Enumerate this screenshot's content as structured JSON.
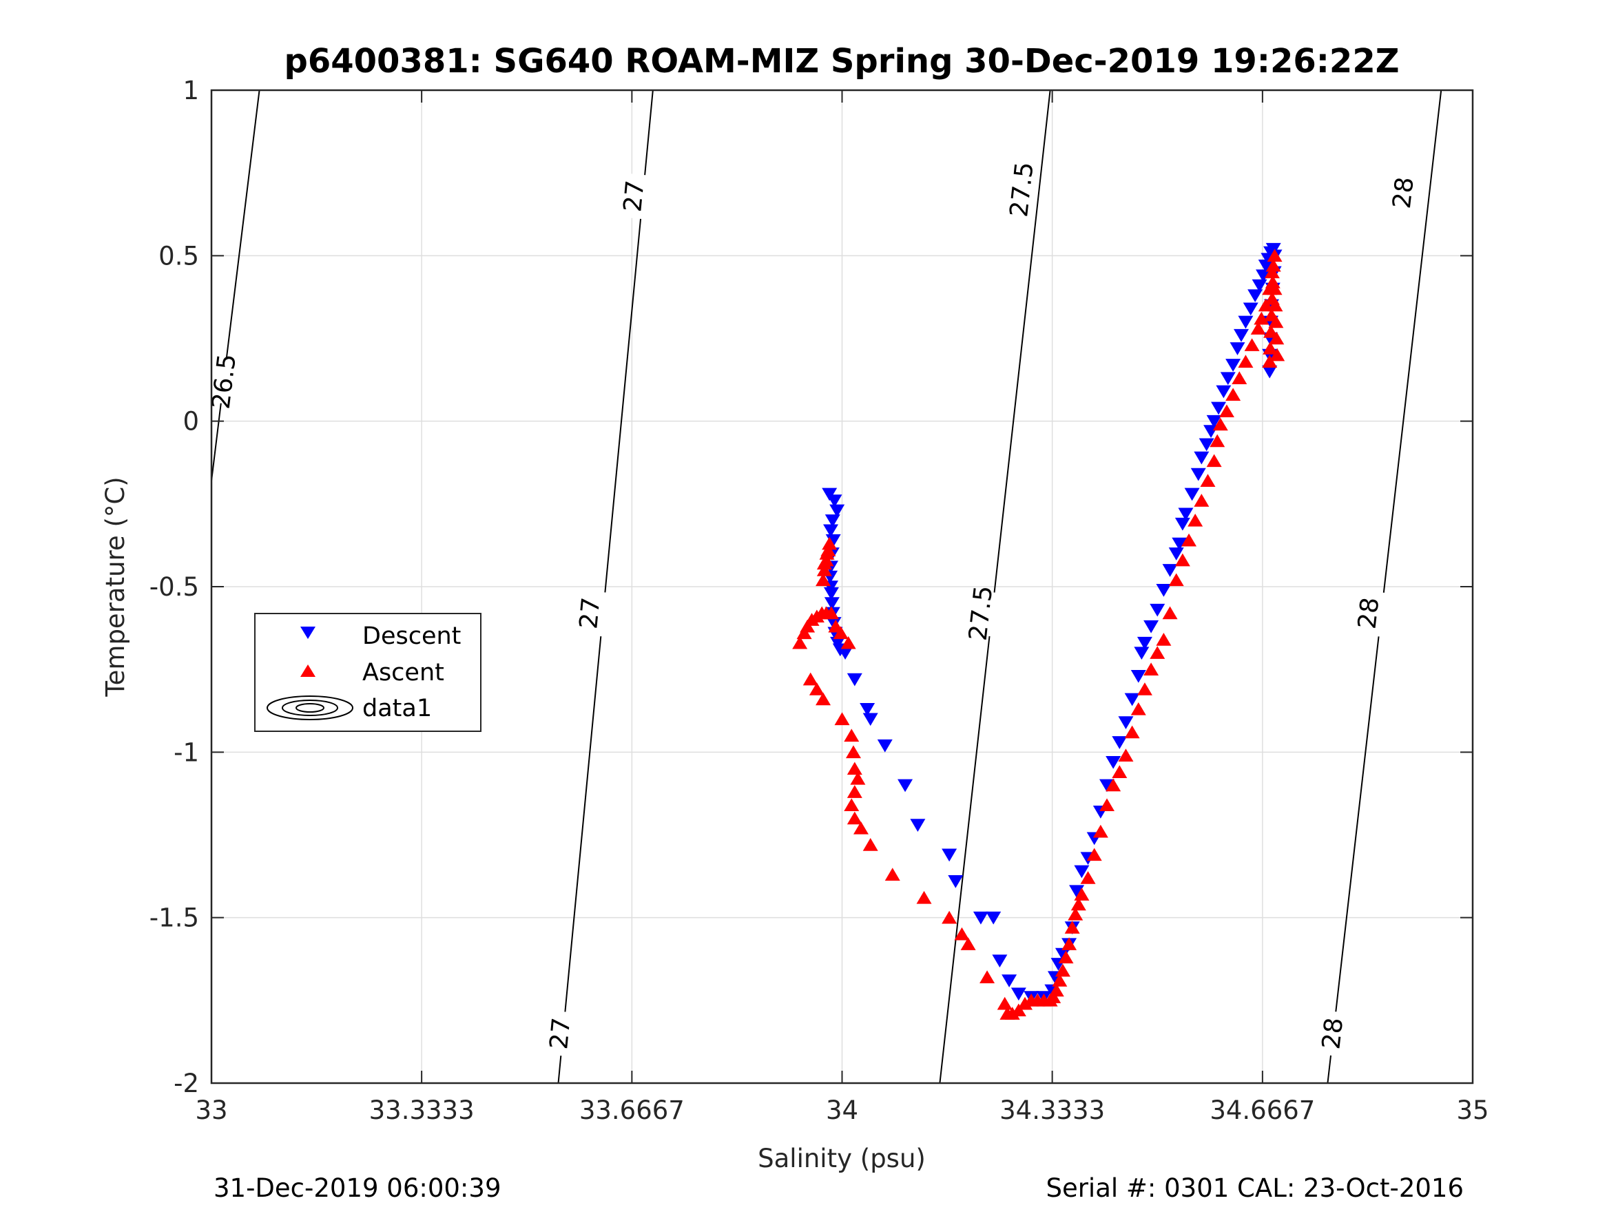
{
  "chart_data": {
    "type": "scatter",
    "title": "p6400381: SG640 ROAM-MIZ Spring 30-Dec-2019 19:26:22Z",
    "xlabel": "Salinity (psu)",
    "ylabel": "Temperature (°C)",
    "xlim": [
      33,
      35
    ],
    "ylim": [
      -2,
      1
    ],
    "grid": true,
    "xticks": [
      33,
      33.3333,
      33.6667,
      34,
      34.3333,
      34.6667,
      35
    ],
    "xtick_labels": [
      "33",
      "33.3333",
      "33.6667",
      "34",
      "34.3333",
      "34.6667",
      "35"
    ],
    "yticks": [
      1,
      0.5,
      0,
      -0.5,
      -1,
      -1.5,
      -2
    ],
    "ytick_labels": [
      "1",
      "0.5",
      "0",
      "-0.5",
      "-1",
      "-1.5",
      "-2"
    ],
    "legend": {
      "position": "left",
      "entries": [
        "Descent",
        "Ascent",
        "data1"
      ]
    },
    "contours": [
      {
        "level": "26.5",
        "points": [
          [
            33.0,
            -0.18
          ],
          [
            33.076,
            1.0
          ]
        ],
        "labels": [
          [
            33.02,
            0.12
          ]
        ]
      },
      {
        "level": "27",
        "points": [
          [
            33.55,
            -2.0
          ],
          [
            33.7,
            1.0
          ]
        ],
        "labels": [
          [
            33.553,
            -1.85
          ],
          [
            33.6,
            -0.58
          ],
          [
            33.67,
            0.68
          ]
        ]
      },
      {
        "level": "27.5",
        "points": [
          [
            34.155,
            -2.0
          ],
          [
            34.33,
            1.0
          ]
        ],
        "labels": [
          [
            34.22,
            -0.58
          ],
          [
            34.285,
            0.7
          ]
        ]
      },
      {
        "level": "28",
        "points": [
          [
            34.77,
            -2.0
          ],
          [
            34.95,
            1.0
          ]
        ],
        "labels": [
          [
            34.778,
            -1.85
          ],
          [
            34.835,
            -0.58
          ],
          [
            34.89,
            0.69
          ]
        ]
      }
    ],
    "series": [
      {
        "name": "Descent",
        "marker": "triangle-down",
        "color": "#0000ff",
        "points": [
          [
            33.98,
            -0.22
          ],
          [
            33.988,
            -0.24
          ],
          [
            33.992,
            -0.27
          ],
          [
            33.985,
            -0.3
          ],
          [
            33.982,
            -0.33
          ],
          [
            33.986,
            -0.36
          ],
          [
            33.984,
            -0.4
          ],
          [
            33.982,
            -0.44
          ],
          [
            33.981,
            -0.47
          ],
          [
            33.982,
            -0.5
          ],
          [
            33.983,
            -0.52
          ],
          [
            33.984,
            -0.55
          ],
          [
            33.985,
            -0.58
          ],
          [
            33.987,
            -0.61
          ],
          [
            33.989,
            -0.64
          ],
          [
            33.993,
            -0.67
          ],
          [
            33.997,
            -0.69
          ],
          [
            34.005,
            -0.7
          ],
          [
            34.02,
            -0.78
          ],
          [
            34.04,
            -0.87
          ],
          [
            34.045,
            -0.9
          ],
          [
            34.068,
            -0.98
          ],
          [
            34.1,
            -1.1
          ],
          [
            34.12,
            -1.22
          ],
          [
            34.17,
            -1.31
          ],
          [
            34.18,
            -1.39
          ],
          [
            34.22,
            -1.5
          ],
          [
            34.24,
            -1.5
          ],
          [
            34.25,
            -1.63
          ],
          [
            34.265,
            -1.69
          ],
          [
            34.28,
            -1.73
          ],
          [
            34.3,
            -1.74
          ],
          [
            34.32,
            -1.74
          ],
          [
            34.333,
            -1.72
          ],
          [
            34.338,
            -1.68
          ],
          [
            34.343,
            -1.64
          ],
          [
            34.35,
            -1.61
          ],
          [
            34.36,
            -1.58
          ],
          [
            34.365,
            -1.53
          ],
          [
            34.372,
            -1.42
          ],
          [
            34.38,
            -1.36
          ],
          [
            34.39,
            -1.32
          ],
          [
            34.4,
            -1.26
          ],
          [
            34.41,
            -1.18
          ],
          [
            34.42,
            -1.1
          ],
          [
            34.43,
            -1.03
          ],
          [
            34.44,
            -0.97
          ],
          [
            34.45,
            -0.91
          ],
          [
            34.46,
            -0.84
          ],
          [
            34.47,
            -0.77
          ],
          [
            34.475,
            -0.7
          ],
          [
            34.48,
            -0.67
          ],
          [
            34.49,
            -0.62
          ],
          [
            34.5,
            -0.57
          ],
          [
            34.51,
            -0.51
          ],
          [
            34.52,
            -0.45
          ],
          [
            34.53,
            -0.4
          ],
          [
            34.535,
            -0.37
          ],
          [
            34.54,
            -0.31
          ],
          [
            34.545,
            -0.28
          ],
          [
            34.555,
            -0.22
          ],
          [
            34.565,
            -0.16
          ],
          [
            34.57,
            -0.11
          ],
          [
            34.578,
            -0.07
          ],
          [
            34.585,
            -0.03
          ],
          [
            34.59,
            0.0
          ],
          [
            34.597,
            0.04
          ],
          [
            34.605,
            0.09
          ],
          [
            34.612,
            0.13
          ],
          [
            34.62,
            0.17
          ],
          [
            34.627,
            0.22
          ],
          [
            34.633,
            0.26
          ],
          [
            34.64,
            0.3
          ],
          [
            34.648,
            0.34
          ],
          [
            34.655,
            0.38
          ],
          [
            34.662,
            0.41
          ],
          [
            34.668,
            0.44
          ],
          [
            34.672,
            0.47
          ],
          [
            34.676,
            0.49
          ],
          [
            34.68,
            0.51
          ],
          [
            34.684,
            0.52
          ],
          [
            34.686,
            0.5
          ],
          [
            34.685,
            0.45
          ],
          [
            34.683,
            0.4
          ],
          [
            34.681,
            0.35
          ],
          [
            34.68,
            0.3
          ],
          [
            34.679,
            0.25
          ],
          [
            34.678,
            0.2
          ],
          [
            34.678,
            0.15
          ]
        ]
      },
      {
        "name": "Ascent",
        "marker": "triangle-up",
        "color": "#ff0000",
        "points": [
          [
            33.933,
            -0.67
          ],
          [
            33.94,
            -0.64
          ],
          [
            33.945,
            -0.62
          ],
          [
            33.952,
            -0.6
          ],
          [
            33.96,
            -0.59
          ],
          [
            33.968,
            -0.58
          ],
          [
            33.975,
            -0.58
          ],
          [
            33.983,
            -0.58
          ],
          [
            33.97,
            -0.48
          ],
          [
            33.972,
            -0.45
          ],
          [
            33.975,
            -0.42
          ],
          [
            33.978,
            -0.39
          ],
          [
            33.98,
            -0.37
          ],
          [
            33.976,
            -0.4
          ],
          [
            33.972,
            -0.43
          ],
          [
            33.99,
            -0.62
          ],
          [
            33.998,
            -0.64
          ],
          [
            34.01,
            -0.67
          ],
          [
            33.95,
            -0.78
          ],
          [
            33.96,
            -0.81
          ],
          [
            33.97,
            -0.84
          ],
          [
            34.0,
            -0.9
          ],
          [
            34.015,
            -0.95
          ],
          [
            34.018,
            -1.0
          ],
          [
            34.02,
            -1.05
          ],
          [
            34.025,
            -1.08
          ],
          [
            34.02,
            -1.12
          ],
          [
            34.015,
            -1.16
          ],
          [
            34.02,
            -1.2
          ],
          [
            34.03,
            -1.23
          ],
          [
            34.045,
            -1.28
          ],
          [
            34.08,
            -1.37
          ],
          [
            34.13,
            -1.44
          ],
          [
            34.17,
            -1.5
          ],
          [
            34.19,
            -1.55
          ],
          [
            34.2,
            -1.58
          ],
          [
            34.23,
            -1.68
          ],
          [
            34.258,
            -1.76
          ],
          [
            34.262,
            -1.79
          ],
          [
            34.27,
            -1.79
          ],
          [
            34.28,
            -1.78
          ],
          [
            34.29,
            -1.76
          ],
          [
            34.3,
            -1.75
          ],
          [
            34.31,
            -1.75
          ],
          [
            34.32,
            -1.75
          ],
          [
            34.33,
            -1.75
          ],
          [
            34.335,
            -1.74
          ],
          [
            34.34,
            -1.72
          ],
          [
            34.345,
            -1.69
          ],
          [
            34.35,
            -1.66
          ],
          [
            34.355,
            -1.62
          ],
          [
            34.36,
            -1.58
          ],
          [
            34.365,
            -1.53
          ],
          [
            34.37,
            -1.49
          ],
          [
            34.375,
            -1.46
          ],
          [
            34.38,
            -1.43
          ],
          [
            34.39,
            -1.38
          ],
          [
            34.4,
            -1.31
          ],
          [
            34.41,
            -1.24
          ],
          [
            34.42,
            -1.16
          ],
          [
            34.43,
            -1.1
          ],
          [
            34.44,
            -1.06
          ],
          [
            34.45,
            -1.01
          ],
          [
            34.46,
            -0.94
          ],
          [
            34.47,
            -0.87
          ],
          [
            34.48,
            -0.81
          ],
          [
            34.49,
            -0.75
          ],
          [
            34.5,
            -0.7
          ],
          [
            34.51,
            -0.66
          ],
          [
            34.52,
            -0.58
          ],
          [
            34.53,
            -0.48
          ],
          [
            34.54,
            -0.42
          ],
          [
            34.55,
            -0.36
          ],
          [
            34.56,
            -0.3
          ],
          [
            34.57,
            -0.24
          ],
          [
            34.58,
            -0.18
          ],
          [
            34.59,
            -0.12
          ],
          [
            34.595,
            -0.06
          ],
          [
            34.6,
            -0.01
          ],
          [
            34.61,
            0.03
          ],
          [
            34.62,
            0.08
          ],
          [
            34.63,
            0.13
          ],
          [
            34.64,
            0.18
          ],
          [
            34.65,
            0.23
          ],
          [
            34.66,
            0.28
          ],
          [
            34.665,
            0.31
          ],
          [
            34.672,
            0.35
          ],
          [
            34.678,
            0.4
          ],
          [
            34.682,
            0.45
          ],
          [
            34.686,
            0.5
          ],
          [
            34.684,
            0.47
          ],
          [
            34.683,
            0.42
          ],
          [
            34.682,
            0.37
          ],
          [
            34.681,
            0.32
          ],
          [
            34.68,
            0.27
          ],
          [
            34.679,
            0.22
          ],
          [
            34.678,
            0.18
          ],
          [
            34.69,
            0.2
          ],
          [
            34.689,
            0.25
          ],
          [
            34.688,
            0.3
          ],
          [
            34.687,
            0.35
          ],
          [
            34.686,
            0.4
          ]
        ]
      }
    ]
  },
  "footer": {
    "left": "31-Dec-2019 06:00:39",
    "right": "Serial #: 0301  CAL: 23-Oct-2016"
  }
}
